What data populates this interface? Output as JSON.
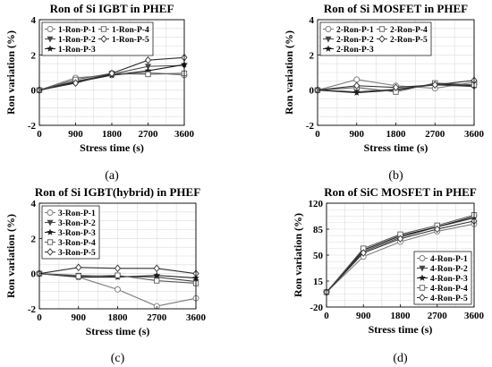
{
  "chart_data": [
    {
      "type": "line",
      "panel_label": "(a)",
      "title": "Ron of Si IGBT in PHEF",
      "xlabel": "Stress time (s)",
      "ylabel": "Ron variation (%)",
      "x": [
        0,
        900,
        1800,
        2700,
        3600
      ],
      "xticks": [
        "0",
        "900",
        "1800",
        "2700",
        "3600"
      ],
      "ylim": [
        -2,
        4
      ],
      "yticks": [
        -2,
        0,
        2,
        4
      ],
      "grid": true,
      "legend_position": "top-left",
      "legend_columns": 2,
      "series": [
        {
          "name": "1-Ron-P-1",
          "marker": "circle",
          "values": [
            0,
            0.7,
            0.85,
            1.0,
            0.85
          ]
        },
        {
          "name": "1-Ron-P-2",
          "marker": "triangle-down",
          "values": [
            0,
            0.5,
            0.9,
            1.35,
            1.4
          ]
        },
        {
          "name": "1-Ron-P-3",
          "marker": "star",
          "values": [
            0,
            0.45,
            0.85,
            1.1,
            1.45
          ]
        },
        {
          "name": "1-Ron-P-4",
          "marker": "square",
          "values": [
            0,
            0.6,
            0.95,
            0.9,
            0.95
          ]
        },
        {
          "name": "1-Ron-P-5",
          "marker": "diamond",
          "values": [
            0,
            0.4,
            0.95,
            1.7,
            1.85
          ]
        }
      ]
    },
    {
      "type": "line",
      "panel_label": "(b)",
      "title": "Ron of Si MOSFET in PHEF",
      "xlabel": "Stress time (s)",
      "ylabel": "Ron variation (%)",
      "x": [
        0,
        900,
        1800,
        2700,
        3600
      ],
      "xticks": [
        "0",
        "900",
        "1800",
        "2700",
        "3600"
      ],
      "ylim": [
        -2,
        4
      ],
      "yticks": [
        -2,
        0,
        2,
        4
      ],
      "grid": true,
      "legend_position": "top-left",
      "legend_columns": 2,
      "series": [
        {
          "name": "2-Ron-P-1",
          "marker": "circle",
          "values": [
            0,
            0.6,
            0.25,
            0.1,
            0.45
          ]
        },
        {
          "name": "2-Ron-P-2",
          "marker": "triangle-down",
          "values": [
            0,
            -0.1,
            0.05,
            0.3,
            0.2
          ]
        },
        {
          "name": "2-Ron-P-3",
          "marker": "star",
          "values": [
            0,
            -0.15,
            0.0,
            0.35,
            0.25
          ]
        },
        {
          "name": "2-Ron-P-4",
          "marker": "square",
          "values": [
            0,
            0.15,
            -0.1,
            0.4,
            0.3
          ]
        },
        {
          "name": "2-Ron-P-5",
          "marker": "diamond",
          "values": [
            0,
            0.25,
            0.15,
            0.3,
            0.55
          ]
        }
      ]
    },
    {
      "type": "line",
      "panel_label": "(c)",
      "title": "Ron of Si IGBT(hybrid) in PHEF",
      "xlabel": "Stress time (s)",
      "ylabel": "Ron variation (%)",
      "x": [
        0,
        900,
        1800,
        2700,
        3600
      ],
      "xticks": [
        "0",
        "900",
        "1800",
        "2700",
        "3600"
      ],
      "ylim": [
        -2,
        4
      ],
      "yticks": [
        -2,
        0,
        2,
        4
      ],
      "grid": true,
      "legend_position": "top-left",
      "legend_columns": 1,
      "series": [
        {
          "name": "3-Ron-P-1",
          "marker": "circle",
          "values": [
            0,
            -0.2,
            -0.9,
            -1.85,
            -1.4
          ]
        },
        {
          "name": "3-Ron-P-2",
          "marker": "triangle-down",
          "values": [
            0,
            -0.1,
            -0.15,
            -0.2,
            -0.45
          ]
        },
        {
          "name": "3-Ron-P-3",
          "marker": "star",
          "values": [
            0,
            -0.2,
            -0.2,
            -0.1,
            -0.25
          ]
        },
        {
          "name": "3-Ron-P-4",
          "marker": "square",
          "values": [
            0,
            -0.15,
            -0.1,
            -0.4,
            -0.55
          ]
        },
        {
          "name": "3-Ron-P-5",
          "marker": "diamond",
          "values": [
            0,
            0.35,
            0.3,
            0.3,
            0.0
          ]
        }
      ]
    },
    {
      "type": "line",
      "panel_label": "(d)",
      "title": "Ron of SiC MOSFET in PHEF",
      "xlabel": "Stress time (s)",
      "ylabel": "Ron variation (%)",
      "x": [
        0,
        900,
        1800,
        2700,
        3600
      ],
      "xticks": [
        "0",
        "900",
        "1800",
        "2700",
        "3600"
      ],
      "ylim": [
        -20,
        120
      ],
      "yticks": [
        -20,
        15,
        50,
        85,
        120
      ],
      "grid": true,
      "legend_position": "bottom-right",
      "legend_columns": 1,
      "series": [
        {
          "name": "4-Ron-P-1",
          "marker": "circle",
          "values": [
            0,
            48,
            68,
            82,
            92
          ]
        },
        {
          "name": "4-Ron-P-2",
          "marker": "triangle-down",
          "values": [
            0,
            55,
            74,
            88,
            100
          ]
        },
        {
          "name": "4-Ron-P-3",
          "marker": "star",
          "values": [
            0,
            57,
            76,
            88,
            102
          ]
        },
        {
          "name": "4-Ron-P-4",
          "marker": "square",
          "values": [
            0,
            59,
            78,
            90,
            104
          ]
        },
        {
          "name": "4-Ron-P-5",
          "marker": "diamond",
          "values": [
            0,
            53,
            72,
            85,
            96
          ]
        }
      ]
    }
  ]
}
